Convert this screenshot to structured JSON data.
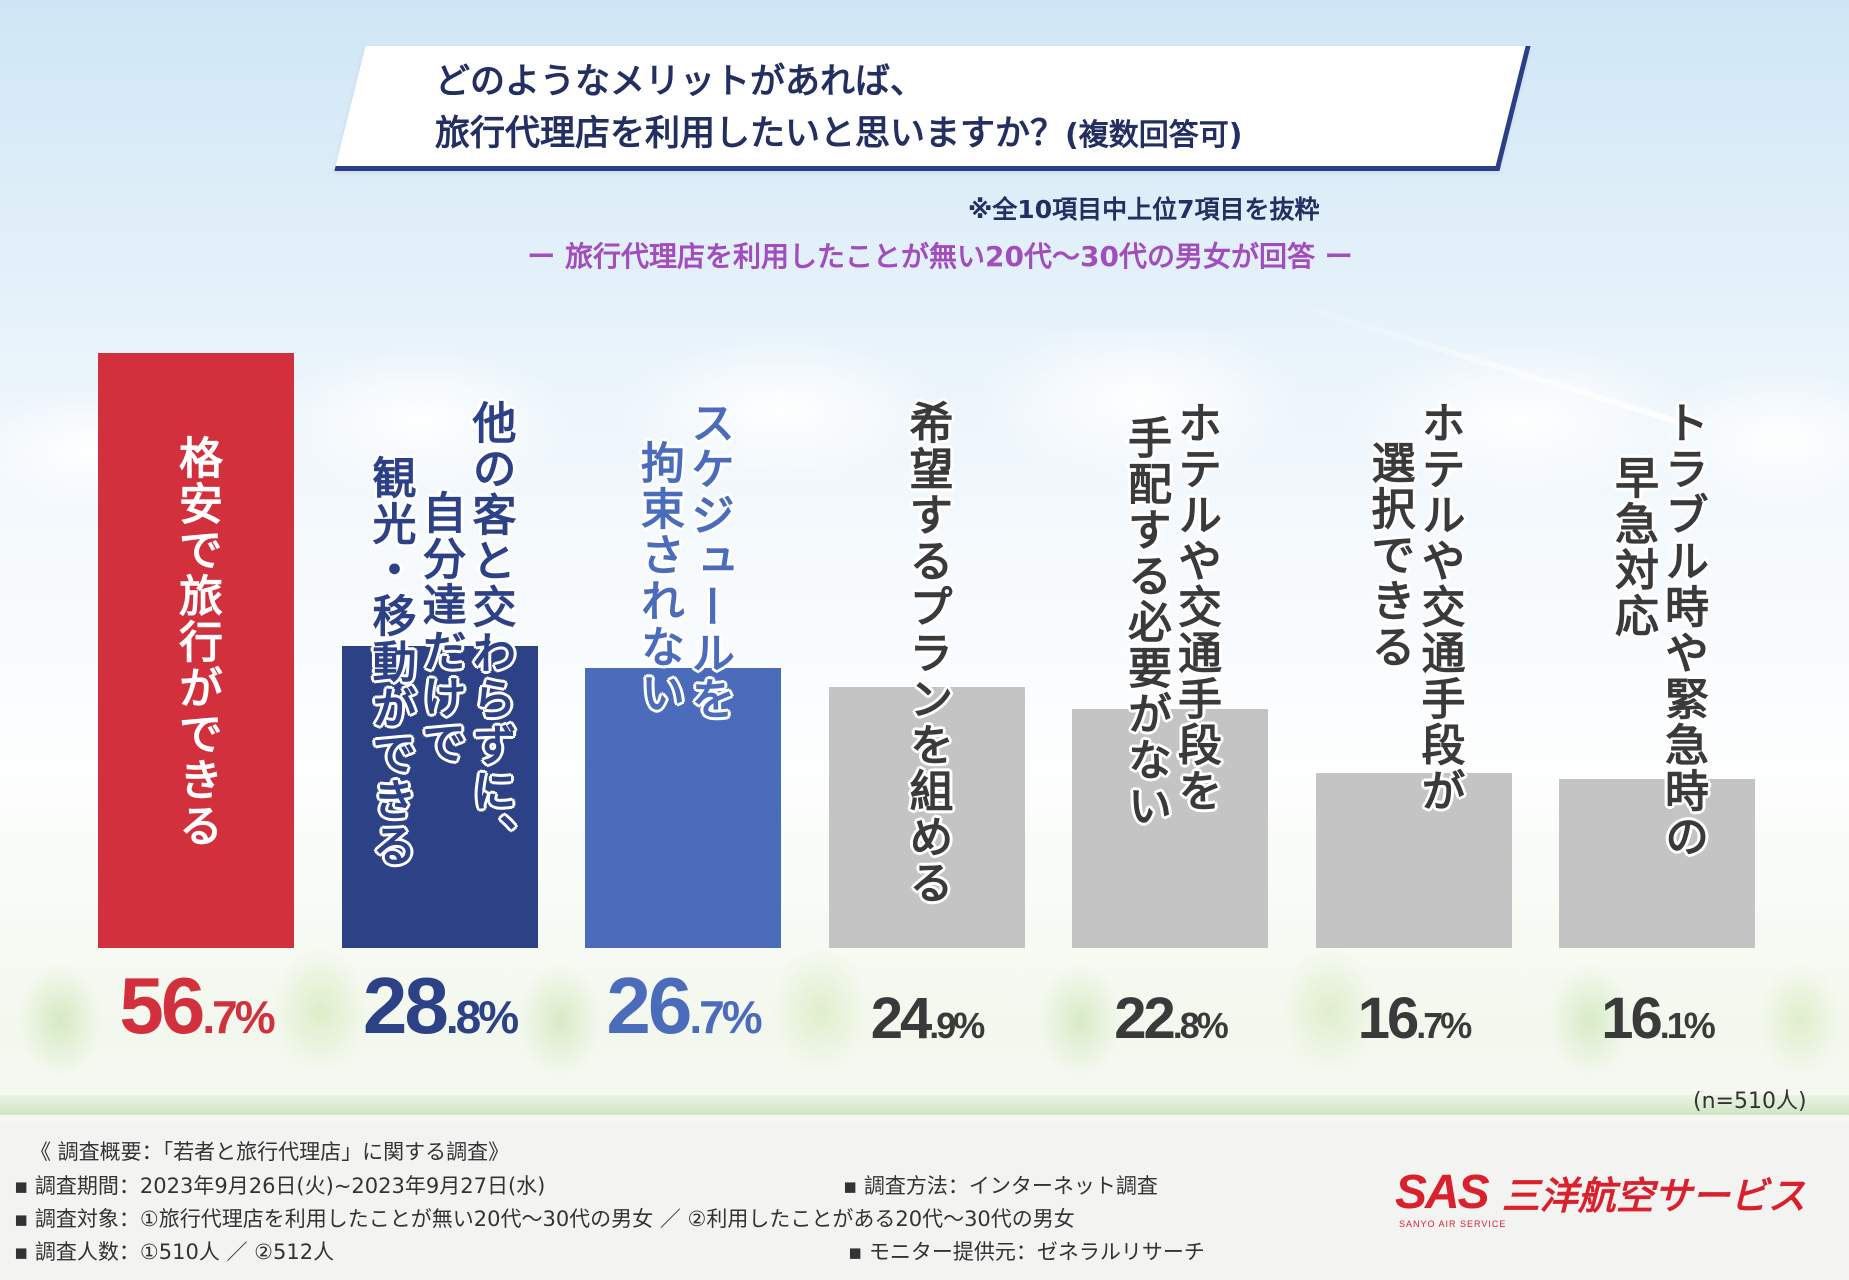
{
  "title": {
    "line1": "どのようなメリットがあれば、",
    "line2_main": "旅行代理店を利用したいと思いますか？",
    "line2_sub": "(複数回答可)"
  },
  "note": "※全10項目中上位7項目を抜粋",
  "subtitle": "ー 旅行代理店を利用したことが無い20代～30代の男女が回答 ー",
  "chart_data": {
    "type": "bar",
    "title": "どのようなメリットがあれば、旅行代理店を利用したいと思いますか？(複数回答可)",
    "xlabel": "",
    "ylabel": "",
    "ylim": [
      0,
      60
    ],
    "unit": "%",
    "categories": [
      [
        "格安で旅行ができる"
      ],
      [
        "他の客と交わらずに、",
        "自分達だけで",
        "観光・移動ができる"
      ],
      [
        "スケジュールを",
        "拘束されない"
      ],
      [
        "希望するプランを組める"
      ],
      [
        "ホテルや交通手段を",
        "手配する必要がない"
      ],
      [
        "ホテルや交通手段が",
        "選択できる"
      ],
      [
        "トラブル時や緊急時の",
        "早急対応"
      ]
    ],
    "values": [
      56.7,
      28.8,
      26.7,
      24.9,
      22.8,
      16.7,
      16.1
    ],
    "value_labels_int": [
      "56",
      "28",
      "26",
      "24",
      "22",
      "16",
      "16"
    ],
    "value_labels_dec": [
      ".7%",
      ".8%",
      ".7%",
      ".9%",
      ".8%",
      ".7%",
      ".1%"
    ],
    "bar_colors": [
      "#d2303d",
      "#2d4187",
      "#4a6cbb",
      "#c4c4c4",
      "#c4c4c4",
      "#c4c4c4",
      "#c4c4c4"
    ],
    "label_colors": [
      "#ffffff",
      "#2d4187",
      "#4a6cbb",
      "#3a3a3a",
      "#3a3a3a",
      "#3a3a3a",
      "#3a3a3a"
    ],
    "value_colors": [
      "#d2303d",
      "#2d4187",
      "#4a6cbb",
      "#3a3a3a",
      "#3a3a3a",
      "#3a3a3a",
      "#3a3a3a"
    ]
  },
  "n_note": "(n=510人)",
  "footer": {
    "overview": "《 調査概要：「若者と旅行代理店」に関する調査》",
    "period": "▪ 調査期間：2023年9月26日(火)~2023年9月27日(水)",
    "method": "▪ 調査方法：インターネット調査",
    "target": "▪ 調査対象：①旅行代理店を利用したことが無い20代～30代の男女 ／ ②利用したことがある20代～30代の男女",
    "count": "▪ 調査人数：①510人 ／ ②512人",
    "monitor": "▪ モニター提供元：ゼネラルリサーチ"
  },
  "brand": {
    "logo": "SAS",
    "logo_sub": "SANYO AIR SERVICE",
    "name": "三洋航空サービス",
    "color": "#d9202c"
  }
}
